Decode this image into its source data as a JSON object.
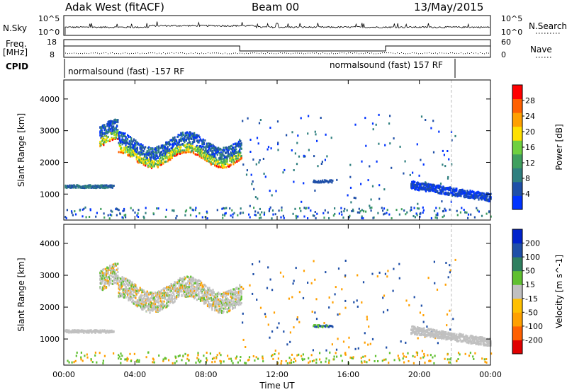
{
  "header": {
    "radar": "Adak West (fitACF)",
    "beam": "Beam 00",
    "date": "13/May/2015"
  },
  "labels": {
    "nsky": "N.Sky",
    "nsearch": "N.Search",
    "freq": "Freq.",
    "mhz": "[MHz]",
    "nave": "Nave",
    "cpid": "CPID",
    "cpid1": "normalsound (fast) -157 RF",
    "cpid2": "normalsound (fast) 157 RF",
    "nsky_top": "10^5",
    "nsky_bot": "10^0",
    "nsearch_top": "10^5",
    "nsearch_bot": "10^0",
    "freq_top": "18",
    "freq_bot": "8",
    "nave_top": "60",
    "nave_bot": "0"
  },
  "colors": {
    "power": [
      "#0033ff",
      "#1f4fa8",
      "#2f7f7f",
      "#3f9f5f",
      "#6fd040",
      "#ffe000",
      "#ffa000",
      "#ff6000",
      "#ff0000"
    ],
    "velocity": [
      "#e00000",
      "#ff6000",
      "#ffa000",
      "#ffc000",
      "#c0c0c0",
      "#60c030",
      "#2f7f5f",
      "#1f4fa8",
      "#0022cc"
    ]
  },
  "chart_data": [
    {
      "type": "heatmap",
      "title": "Power",
      "xlabel": "",
      "ylabel": "Slant Range [km]",
      "colorbar_label": "Power [dB]",
      "colorbar_ticks": [
        "4",
        "8",
        "12",
        "16",
        "20",
        "24",
        "28"
      ],
      "x_ticks": [
        "00:00",
        "04:00",
        "08:00",
        "12:00",
        "16:00",
        "20:00",
        "00:00"
      ],
      "y_ticks": [
        "1000",
        "2000",
        "3000",
        "4000"
      ],
      "xlim": [
        0,
        24
      ],
      "ylim": [
        180,
        4600
      ]
    },
    {
      "type": "heatmap",
      "title": "Velocity",
      "xlabel": "Time UT",
      "ylabel": "Slant Range [km]",
      "colorbar_label": "Velocity [m s^-1]",
      "colorbar_ticks": [
        "-200",
        "-100",
        "-50",
        "-15",
        "15",
        "50",
        "100",
        "200"
      ],
      "x_ticks": [
        "00:00",
        "04:00",
        "08:00",
        "12:00",
        "16:00",
        "20:00",
        "00:00"
      ],
      "y_ticks": [
        "1000",
        "2000",
        "3000",
        "4000"
      ],
      "xlim": [
        0,
        24
      ],
      "ylim": [
        180,
        4600
      ]
    }
  ]
}
